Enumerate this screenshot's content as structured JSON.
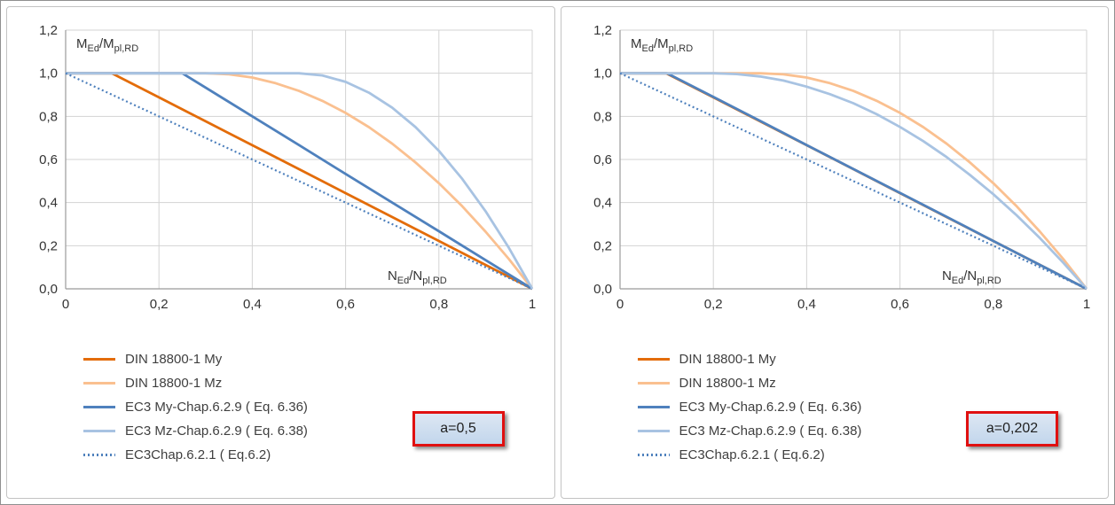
{
  "colors": {
    "grid": "#d3d3d3",
    "axis": "#9b9b9b",
    "tick_text": "#333333",
    "annotation_fill": "#c5d9f1",
    "annotation_border": "#e01010",
    "din_my": "#e36c09",
    "din_mz": "#fac090",
    "ec3_my": "#4f81bd",
    "ec3_mz": "#a8c3e2",
    "ec3_62_dotted": "#4f81bd"
  },
  "chart_data": [
    {
      "type": "line",
      "annotation": "a=0,5",
      "grid": true,
      "legend_position": "bottom-left",
      "x_axis": {
        "range": [
          0,
          1
        ],
        "title_segments": [
          {
            "t": "N"
          },
          {
            "t": "Ed",
            "sub": true
          },
          {
            "t": "/N"
          },
          {
            "t": "pl,RD",
            "sub": true
          }
        ],
        "ticks": [
          {
            "v": 0,
            "label": "0"
          },
          {
            "v": 0.2,
            "label": "0,2"
          },
          {
            "v": 0.4,
            "label": "0,4"
          },
          {
            "v": 0.6,
            "label": "0,6"
          },
          {
            "v": 0.8,
            "label": "0,8"
          },
          {
            "v": 1,
            "label": "1"
          }
        ]
      },
      "y_axis": {
        "range": [
          0,
          1.2
        ],
        "title_segments": [
          {
            "t": "M"
          },
          {
            "t": "Ed",
            "sub": true
          },
          {
            "t": "/M"
          },
          {
            "t": "pl,RD",
            "sub": true
          }
        ],
        "ticks": [
          {
            "v": 0,
            "label": "0,0"
          },
          {
            "v": 0.2,
            "label": "0,2"
          },
          {
            "v": 0.4,
            "label": "0,4"
          },
          {
            "v": 0.6,
            "label": "0,6"
          },
          {
            "v": 0.8,
            "label": "0,8"
          },
          {
            "v": 1,
            "label": "1,0"
          },
          {
            "v": 1.2,
            "label": "1,2"
          }
        ]
      },
      "series": [
        {
          "label": "DIN 18800-1 My",
          "color": "#e36c09",
          "dash": null,
          "width": 2.8,
          "points": [
            [
              0,
              1
            ],
            [
              0.099,
              1
            ],
            [
              0.2,
              0.888
            ],
            [
              0.3,
              0.777
            ],
            [
              0.4,
              0.666
            ],
            [
              0.5,
              0.555
            ],
            [
              0.6,
              0.444
            ],
            [
              0.7,
              0.333
            ],
            [
              0.8,
              0.222
            ],
            [
              0.9,
              0.111
            ],
            [
              1,
              0
            ]
          ]
        },
        {
          "label": "DIN 18800-1 Mz",
          "color": "#fac090",
          "dash": null,
          "width": 2.8,
          "points": [
            [
              0,
              1
            ],
            [
              0.3,
              1
            ],
            [
              0.35,
              0.995
            ],
            [
              0.4,
              0.98
            ],
            [
              0.45,
              0.954
            ],
            [
              0.5,
              0.918
            ],
            [
              0.55,
              0.872
            ],
            [
              0.6,
              0.816
            ],
            [
              0.65,
              0.75
            ],
            [
              0.7,
              0.673
            ],
            [
              0.75,
              0.586
            ],
            [
              0.8,
              0.49
            ],
            [
              0.85,
              0.383
            ],
            [
              0.9,
              0.265
            ],
            [
              0.95,
              0.138
            ],
            [
              1,
              0
            ]
          ]
        },
        {
          "label": "EC3 My-Chap.6.2.9 ( Eq. 6.36)",
          "color": "#4f81bd",
          "dash": null,
          "width": 2.8,
          "points": [
            [
              0,
              1
            ],
            [
              0.25,
              1
            ],
            [
              0.4,
              0.8
            ],
            [
              0.5,
              0.667
            ],
            [
              0.6,
              0.533
            ],
            [
              0.7,
              0.4
            ],
            [
              0.8,
              0.267
            ],
            [
              0.9,
              0.133
            ],
            [
              1,
              0
            ]
          ]
        },
        {
          "label": "EC3 Mz-Chap.6.2.9 ( Eq. 6.38)",
          "color": "#a8c3e2",
          "dash": null,
          "width": 2.8,
          "points": [
            [
              0,
              1
            ],
            [
              0.5,
              1
            ],
            [
              0.55,
              0.99
            ],
            [
              0.6,
              0.96
            ],
            [
              0.65,
              0.91
            ],
            [
              0.7,
              0.84
            ],
            [
              0.75,
              0.75
            ],
            [
              0.8,
              0.64
            ],
            [
              0.85,
              0.51
            ],
            [
              0.9,
              0.36
            ],
            [
              0.95,
              0.19
            ],
            [
              1,
              0
            ]
          ]
        },
        {
          "label": "EC3Chap.6.2.1 ( Eq.6.2)",
          "color": "#4f81bd",
          "dash": "2,3",
          "width": 2.2,
          "points": [
            [
              0,
              1
            ],
            [
              1,
              0
            ]
          ]
        }
      ]
    },
    {
      "type": "line",
      "annotation": "a=0,202",
      "grid": true,
      "legend_position": "bottom-left",
      "x_axis": {
        "range": [
          0,
          1
        ],
        "title_segments": [
          {
            "t": "N"
          },
          {
            "t": "Ed",
            "sub": true
          },
          {
            "t": "/N"
          },
          {
            "t": "pl,RD",
            "sub": true
          }
        ],
        "ticks": [
          {
            "v": 0,
            "label": "0"
          },
          {
            "v": 0.2,
            "label": "0,2"
          },
          {
            "v": 0.4,
            "label": "0,4"
          },
          {
            "v": 0.6,
            "label": "0,6"
          },
          {
            "v": 0.8,
            "label": "0,8"
          },
          {
            "v": 1,
            "label": "1"
          }
        ]
      },
      "y_axis": {
        "range": [
          0,
          1.2
        ],
        "title_segments": [
          {
            "t": "M"
          },
          {
            "t": "Ed",
            "sub": true
          },
          {
            "t": "/M"
          },
          {
            "t": "pl,RD",
            "sub": true
          }
        ],
        "ticks": [
          {
            "v": 0,
            "label": "0,0"
          },
          {
            "v": 0.2,
            "label": "0,2"
          },
          {
            "v": 0.4,
            "label": "0,4"
          },
          {
            "v": 0.6,
            "label": "0,6"
          },
          {
            "v": 0.8,
            "label": "0,8"
          },
          {
            "v": 1,
            "label": "1,0"
          },
          {
            "v": 1.2,
            "label": "1,2"
          }
        ]
      },
      "series": [
        {
          "label": "DIN 18800-1 My",
          "color": "#e36c09",
          "dash": null,
          "width": 2.8,
          "points": [
            [
              0,
              1
            ],
            [
              0.099,
              1
            ],
            [
              0.2,
              0.888
            ],
            [
              0.3,
              0.777
            ],
            [
              0.4,
              0.666
            ],
            [
              0.5,
              0.555
            ],
            [
              0.6,
              0.444
            ],
            [
              0.7,
              0.333
            ],
            [
              0.8,
              0.222
            ],
            [
              0.9,
              0.111
            ],
            [
              1,
              0
            ]
          ]
        },
        {
          "label": "DIN 18800-1 Mz",
          "color": "#fac090",
          "dash": null,
          "width": 2.8,
          "points": [
            [
              0,
              1
            ],
            [
              0.3,
              1
            ],
            [
              0.35,
              0.995
            ],
            [
              0.4,
              0.98
            ],
            [
              0.45,
              0.954
            ],
            [
              0.5,
              0.918
            ],
            [
              0.55,
              0.872
            ],
            [
              0.6,
              0.816
            ],
            [
              0.65,
              0.75
            ],
            [
              0.7,
              0.673
            ],
            [
              0.75,
              0.586
            ],
            [
              0.8,
              0.49
            ],
            [
              0.85,
              0.383
            ],
            [
              0.9,
              0.265
            ],
            [
              0.95,
              0.138
            ],
            [
              1,
              0
            ]
          ]
        },
        {
          "label": "EC3 My-Chap.6.2.9 ( Eq. 6.36)",
          "color": "#4f81bd",
          "dash": null,
          "width": 2.8,
          "points": [
            [
              0,
              1
            ],
            [
              0.101,
              1
            ],
            [
              0.2,
              0.89
            ],
            [
              0.3,
              0.779
            ],
            [
              0.4,
              0.667
            ],
            [
              0.5,
              0.556
            ],
            [
              0.6,
              0.445
            ],
            [
              0.7,
              0.334
            ],
            [
              0.8,
              0.222
            ],
            [
              0.9,
              0.111
            ],
            [
              1,
              0
            ]
          ]
        },
        {
          "label": "EC3 Mz-Chap.6.2.9 ( Eq. 6.38)",
          "color": "#a8c3e2",
          "dash": null,
          "width": 2.8,
          "points": [
            [
              0,
              1
            ],
            [
              0.202,
              1
            ],
            [
              0.25,
              0.996
            ],
            [
              0.3,
              0.985
            ],
            [
              0.35,
              0.966
            ],
            [
              0.4,
              0.938
            ],
            [
              0.45,
              0.903
            ],
            [
              0.5,
              0.861
            ],
            [
              0.55,
              0.81
            ],
            [
              0.6,
              0.751
            ],
            [
              0.65,
              0.685
            ],
            [
              0.7,
              0.611
            ],
            [
              0.75,
              0.528
            ],
            [
              0.8,
              0.439
            ],
            [
              0.85,
              0.341
            ],
            [
              0.9,
              0.235
            ],
            [
              0.95,
              0.121
            ],
            [
              1,
              0
            ]
          ]
        },
        {
          "label": "EC3Chap.6.2.1 ( Eq.6.2)",
          "color": "#4f81bd",
          "dash": "2,3",
          "width": 2.2,
          "points": [
            [
              0,
              1
            ],
            [
              1,
              0
            ]
          ]
        }
      ]
    }
  ]
}
